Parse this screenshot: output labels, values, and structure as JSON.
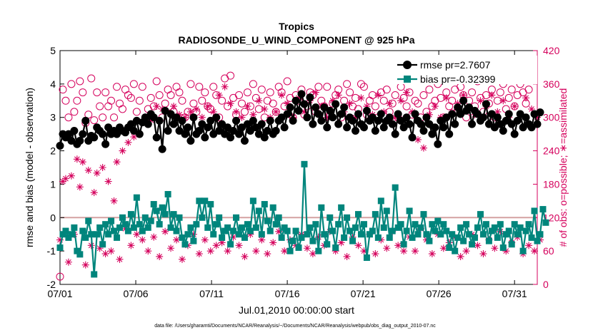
{
  "chart_data": {
    "type": "line",
    "title": "Tropics",
    "subtitle": "RADIOSONDE_U_WIND_COMPONENT @ 925 hPa",
    "xlabel": "Jul.01,2010 00:00:00 start",
    "ylabel": "rmse and bias (model - observation)",
    "y2label": "# of obs: o=possible; ∗=assimilated",
    "footer": "data file: /Users/gharamti/Documents/NCAR/Reanalysis/~/Documents/NCAR/Reanalysis/webpub/obs_diag_output_2010-07.nc",
    "x_range_days": [
      0,
      31.5
    ],
    "ylim": [
      -2,
      5
    ],
    "y2lim": [
      0,
      420
    ],
    "xticks": [
      {
        "day": 0,
        "label": "07/01"
      },
      {
        "day": 5,
        "label": "07/06"
      },
      {
        "day": 10,
        "label": "07/11"
      },
      {
        "day": 15,
        "label": "07/16"
      },
      {
        "day": 20,
        "label": "07/21"
      },
      {
        "day": 25,
        "label": "07/26"
      },
      {
        "day": 30,
        "label": "07/31"
      }
    ],
    "yticks": [
      -2,
      -1,
      0,
      1,
      2,
      3,
      4,
      5
    ],
    "y2ticks": [
      0,
      60,
      120,
      180,
      240,
      300,
      360,
      420
    ],
    "legend_position": "top-right",
    "series": [
      {
        "name": "rmse",
        "legend": "rmse pr=2.7607",
        "color": "#000000",
        "marker": "circle",
        "axis": "left",
        "values": [
          2.15,
          2.5,
          2.4,
          2.5,
          2.3,
          2.6,
          2.2,
          2.3,
          2.5,
          2.9,
          2.3,
          2.45,
          2.4,
          2.7,
          2.6,
          2.5,
          2.2,
          2.7,
          2.5,
          2.6,
          2.5,
          2.7,
          2.6,
          2.55,
          2.7,
          2.8,
          2.6,
          2.9,
          2.5,
          2.85,
          3.0,
          2.8,
          3.1,
          3.0,
          2.4,
          2.9,
          2.05,
          3.2,
          2.6,
          3.1,
          2.8,
          3.0,
          2.6,
          2.9,
          2.5,
          2.7,
          2.3,
          3.0,
          2.5,
          2.6,
          2.8,
          2.4,
          2.7,
          2.9,
          2.5,
          3.0,
          2.6,
          2.8,
          2.5,
          2.7,
          2.4,
          2.6,
          2.9,
          2.5,
          2.7,
          2.3,
          2.8,
          2.6,
          2.9,
          2.7,
          2.5,
          2.8,
          2.4,
          2.6,
          2.9,
          2.5,
          2.6,
          2.9,
          3.0,
          2.7,
          3.1,
          3.3,
          2.9,
          3.5,
          3.2,
          3.7,
          3.4,
          3.0,
          3.6,
          2.8,
          3.3,
          3.1,
          2.9,
          3.3,
          2.7,
          3.2,
          3.0,
          3.4,
          2.8,
          3.1,
          3.3,
          2.7,
          3.0,
          2.9,
          2.6,
          3.1,
          2.8,
          2.7,
          3.2,
          2.9,
          3.0,
          2.6,
          2.9,
          3.1,
          2.7,
          2.9,
          3.0,
          2.8,
          2.5,
          3.1,
          2.9,
          2.7,
          3.0,
          2.8,
          2.4,
          3.1,
          2.9,
          2.8,
          2.6,
          3.0,
          2.8,
          2.5,
          2.7,
          2.2,
          2.9,
          2.7,
          3.0,
          2.5,
          3.1,
          2.8,
          3.3,
          3.1,
          3.5,
          3.2,
          3.3,
          2.8,
          3.2,
          3.1,
          2.9,
          3.0,
          3.4,
          2.8,
          3.1,
          2.7,
          3.0,
          2.8,
          2.6,
          2.9,
          3.1,
          2.8,
          2.5,
          2.9,
          3.1,
          2.7,
          3.0,
          2.8,
          2.7,
          3.1,
          2.8,
          3.15
        ]
      },
      {
        "name": "bias",
        "legend": "bias pr=-0.32399",
        "color": "#00857C",
        "marker": "square",
        "axis": "left",
        "values": [
          -0.9,
          -0.5,
          -0.4,
          -0.6,
          -0.5,
          -0.3,
          -1.0,
          -1.1,
          -0.4,
          -0.6,
          -0.1,
          -0.5,
          -1.7,
          -0.5,
          -0.3,
          -0.8,
          -0.2,
          -0.5,
          -0.1,
          -0.4,
          -0.6,
          -0.3,
          0.0,
          -0.2,
          -0.4,
          0.1,
          -0.3,
          0.6,
          -0.2,
          -0.4,
          0.0,
          -0.3,
          -0.1,
          0.4,
          0.2,
          -0.2,
          0.3,
          0.1,
          0.7,
          -0.3,
          0.1,
          -0.4,
          0.0,
          -0.6,
          -0.8,
          -0.5,
          -0.3,
          -0.7,
          -0.2,
          0.5,
          0.0,
          0.5,
          -0.3,
          0.4,
          -0.5,
          -0.2,
          0.0,
          -0.6,
          -0.4,
          -0.3,
          -0.8,
          -0.4,
          0.0,
          -0.5,
          -0.3,
          -0.6,
          -0.2,
          -0.4,
          0.5,
          -0.3,
          0.2,
          -0.5,
          0.4,
          -0.1,
          -0.4,
          0.3,
          -0.2,
          0.0,
          -0.6,
          -0.3,
          -0.4,
          -1.0,
          -0.7,
          -0.4,
          -0.9,
          -0.6,
          1.6,
          -0.5,
          -0.3,
          -0.7,
          -0.2,
          -1.0,
          0.3,
          -0.5,
          -0.8,
          0.0,
          -0.4,
          -0.9,
          -0.2,
          0.3,
          -0.6,
          0.0,
          -0.4,
          -0.7,
          -0.3,
          0.1,
          -0.5,
          -0.2,
          -1.2,
          -0.5,
          -0.4,
          0.1,
          -0.6,
          0.5,
          -0.3,
          0.2,
          -0.6,
          -0.4,
          0.9,
          -0.3,
          -0.2,
          -0.8,
          -0.4,
          0.2,
          -0.6,
          -0.2,
          -0.5,
          -0.3,
          0.1,
          -0.5,
          -0.7,
          -0.2,
          -0.4,
          -0.1,
          -0.5,
          -0.2,
          -0.4,
          -0.9,
          -0.5,
          -1.0,
          -0.6,
          -0.3,
          -0.7,
          -0.2,
          -0.5,
          -0.8,
          -0.6,
          -0.3,
          0.1,
          -0.5,
          -0.2,
          -0.7,
          -0.4,
          -0.3,
          -0.6,
          -0.2,
          -0.9,
          -0.5,
          -0.4,
          -0.8,
          -0.2,
          -0.5,
          -0.3,
          -1.0,
          -0.4,
          -0.2,
          -0.6,
          0.2,
          -0.7,
          -0.5,
          0.25,
          -0.15
        ]
      }
    ],
    "possible": {
      "name": "possible",
      "color": "#D5005C",
      "marker": "open-circle",
      "axis": "right",
      "values": [
        14,
        350,
        330,
        300,
        360,
        310,
        330,
        365,
        345,
        290,
        305,
        370,
        295,
        345,
        320,
        300,
        345,
        320,
        330,
        300,
        355,
        325,
        315,
        350,
        340,
        335,
        360,
        310,
        330,
        355,
        300,
        315,
        335,
        320,
        365,
        340,
        300,
        325,
        350,
        340,
        310,
        355,
        345,
        330,
        300,
        310,
        360,
        325,
        310,
        355,
        330,
        345,
        320,
        315,
        355,
        340,
        300,
        330,
        370,
        320,
        375,
        335,
        305,
        340,
        325,
        310,
        345,
        320,
        360,
        335,
        315,
        350,
        300,
        330,
        345,
        325,
        310,
        355,
        345,
        320,
        365,
        335,
        300,
        340,
        330,
        350,
        305,
        320,
        345,
        340,
        310,
        355,
        330,
        320,
        355,
        305,
        325,
        340,
        350,
        300,
        330,
        360,
        345,
        320,
        335,
        315,
        360,
        355,
        305,
        330,
        340,
        320,
        300,
        345,
        330,
        350,
        310,
        325,
        340,
        300,
        355,
        335,
        320,
        345,
        305,
        330,
        325,
        300,
        340,
        310,
        350,
        320,
        330,
        360,
        335,
        300,
        345,
        320,
        330,
        350,
        310,
        355,
        340,
        300,
        330,
        345,
        320,
        365,
        335,
        310,
        340,
        325,
        350,
        300,
        330,
        345,
        360,
        315,
        335,
        350,
        320,
        340,
        360,
        345,
        325,
        350
      ]
    },
    "assimilated": {
      "name": "assimilated",
      "color": "#D5005C",
      "marker": "asterisk",
      "axis": "right",
      "values": [
        80,
        185,
        190,
        40,
        195,
        90,
        225,
        175,
        220,
        35,
        205,
        70,
        165,
        200,
        65,
        210,
        55,
        185,
        60,
        150,
        220,
        45,
        240,
        100,
        255,
        70,
        265,
        90,
        270,
        80,
        290,
        60,
        295,
        85,
        320,
        50,
        315,
        95,
        310,
        65,
        320,
        80,
        305,
        45,
        300,
        70,
        310,
        90,
        315,
        55,
        300,
        80,
        320,
        60,
        310,
        70,
        340,
        75,
        355,
        60,
        325,
        85,
        310,
        70,
        300,
        50,
        320,
        90,
        305,
        60,
        330,
        80,
        315,
        55,
        300,
        75,
        310,
        95,
        340,
        60,
        325,
        80,
        300,
        70,
        335,
        90,
        310,
        65,
        330,
        55,
        345,
        85,
        320,
        70,
        300,
        95,
        330,
        60,
        340,
        75,
        310,
        50,
        325,
        85,
        300,
        70,
        335,
        60,
        320,
        90,
        305,
        55,
        340,
        80,
        310,
        65,
        325,
        95,
        300,
        70,
        330,
        60,
        345,
        85,
        310,
        60,
        260,
        100,
        245,
        80,
        305,
        55,
        320,
        90,
        300,
        65,
        335,
        75,
        310,
        85,
        325,
        50,
        340,
        60,
        315,
        90,
        305,
        70,
        330,
        55,
        320,
        80,
        340,
        65,
        310,
        95,
        330,
        60,
        300,
        75,
        320,
        85,
        305,
        55,
        335,
        70,
        315,
        60,
        300,
        80
      ]
    }
  }
}
